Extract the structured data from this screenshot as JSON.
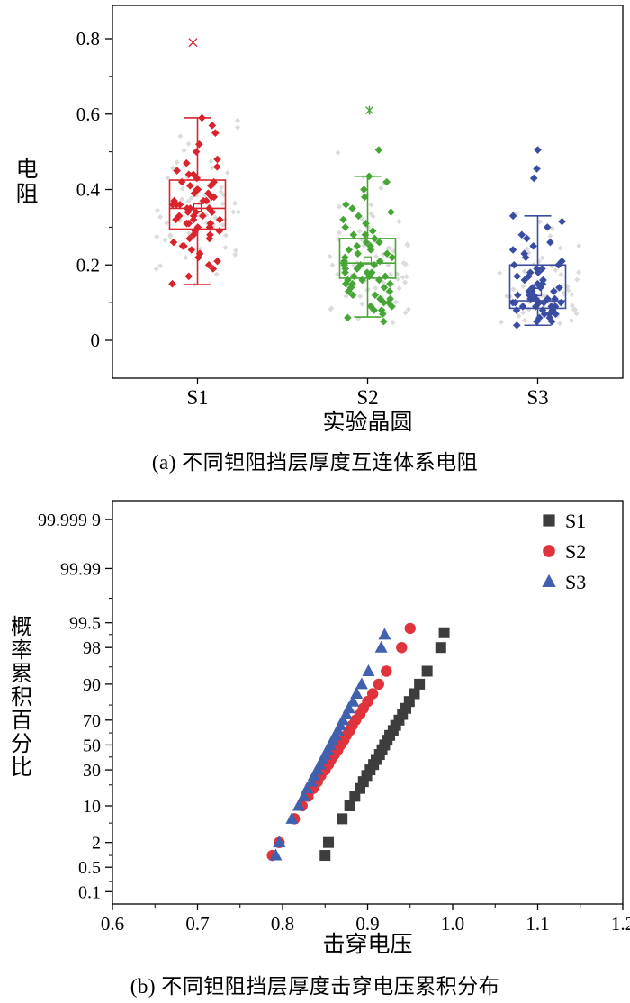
{
  "page": {
    "background": "#ffffff"
  },
  "chart_data": [
    {
      "type": "box",
      "caption": "(a) 不同钽阻挡层厚度互连体系电阻",
      "xlabel": "实验晶圆",
      "ylabel": "电阻",
      "categories": [
        "S1",
        "S2",
        "S3"
      ],
      "yticks": [
        0,
        0.2,
        0.4,
        0.6,
        0.8
      ],
      "yticks_minor": [
        0.1,
        0.3,
        0.5,
        0.7
      ],
      "ylim": [
        -0.1,
        0.88
      ],
      "series": [
        {
          "name": "S1",
          "color": "#d9232d",
          "box": {
            "low": 0.148,
            "q1": 0.295,
            "median": 0.35,
            "q3": 0.425,
            "high": 0.59,
            "mean": 0.352
          },
          "outliers": [
            0.79
          ],
          "outlier_marker": "x",
          "points": [
            0.15,
            0.17,
            0.19,
            0.2,
            0.21,
            0.22,
            0.23,
            0.24,
            0.25,
            0.25,
            0.26,
            0.27,
            0.27,
            0.28,
            0.28,
            0.29,
            0.29,
            0.3,
            0.3,
            0.3,
            0.31,
            0.31,
            0.31,
            0.32,
            0.32,
            0.32,
            0.33,
            0.33,
            0.33,
            0.34,
            0.34,
            0.34,
            0.35,
            0.35,
            0.35,
            0.36,
            0.36,
            0.36,
            0.37,
            0.37,
            0.37,
            0.38,
            0.38,
            0.39,
            0.39,
            0.4,
            0.4,
            0.41,
            0.41,
            0.42,
            0.42,
            0.43,
            0.44,
            0.44,
            0.45,
            0.46,
            0.47,
            0.48,
            0.5,
            0.52,
            0.55,
            0.57,
            0.59
          ]
        },
        {
          "name": "S2",
          "color": "#46a635",
          "box": {
            "low": 0.062,
            "q1": 0.165,
            "median": 0.205,
            "q3": 0.27,
            "high": 0.435,
            "mean": 0.212
          },
          "outliers": [
            0.61
          ],
          "outlier_marker": "star",
          "points": [
            0.05,
            0.06,
            0.07,
            0.08,
            0.08,
            0.09,
            0.09,
            0.1,
            0.1,
            0.11,
            0.11,
            0.12,
            0.12,
            0.13,
            0.13,
            0.14,
            0.14,
            0.15,
            0.15,
            0.15,
            0.16,
            0.16,
            0.16,
            0.17,
            0.17,
            0.17,
            0.18,
            0.18,
            0.18,
            0.19,
            0.19,
            0.2,
            0.2,
            0.2,
            0.21,
            0.21,
            0.22,
            0.22,
            0.23,
            0.23,
            0.24,
            0.24,
            0.25,
            0.25,
            0.26,
            0.26,
            0.27,
            0.28,
            0.28,
            0.29,
            0.3,
            0.31,
            0.32,
            0.33,
            0.34,
            0.35,
            0.36,
            0.38,
            0.4,
            0.42,
            0.435,
            0.505
          ]
        },
        {
          "name": "S3",
          "color": "#3a4da0",
          "box": {
            "low": 0.04,
            "q1": 0.085,
            "median": 0.105,
            "q3": 0.2,
            "high": 0.33,
            "mean": 0.128
          },
          "outliers": [
            0.43,
            0.455,
            0.505
          ],
          "outlier_marker": "diamond",
          "points": [
            0.04,
            0.05,
            0.05,
            0.06,
            0.06,
            0.07,
            0.07,
            0.07,
            0.08,
            0.08,
            0.08,
            0.09,
            0.09,
            0.09,
            0.09,
            0.1,
            0.1,
            0.1,
            0.1,
            0.1,
            0.11,
            0.11,
            0.11,
            0.11,
            0.12,
            0.12,
            0.12,
            0.13,
            0.13,
            0.13,
            0.14,
            0.14,
            0.14,
            0.15,
            0.15,
            0.16,
            0.16,
            0.17,
            0.17,
            0.18,
            0.18,
            0.19,
            0.19,
            0.2,
            0.2,
            0.21,
            0.22,
            0.23,
            0.24,
            0.25,
            0.26,
            0.27,
            0.28,
            0.3,
            0.315,
            0.33
          ]
        }
      ]
    },
    {
      "type": "scatter",
      "scale": "probit-y",
      "caption": "(b) 不同钽阻挡层厚度击穿电压累积分布",
      "xlabel": "击穿电压",
      "ylabel": "概率累积百分比",
      "xlim": [
        0.6,
        1.2
      ],
      "xticks": [
        0.6,
        0.7,
        0.8,
        0.9,
        1.0,
        1.1,
        1.2
      ],
      "xtick_labels": [
        "0.6",
        "0.7",
        "0.8",
        "0.9",
        "1.0",
        "1.1",
        "1.2"
      ],
      "yticks": [
        99.9999,
        99.99,
        99.5,
        98,
        90,
        70,
        50,
        30,
        10,
        2,
        0.5,
        0.1
      ],
      "ytick_labels": [
        "99.999 9",
        "99.99",
        "99.5",
        "98",
        "90",
        "70",
        "50",
        "30",
        "10",
        "2",
        "0.5",
        "0.1"
      ],
      "yticks_minor": [
        99.9,
        99,
        95,
        80,
        60,
        40,
        20,
        5,
        1,
        0.2
      ],
      "xticks_minor": [
        0.65,
        0.75,
        0.85,
        0.95,
        1.05,
        1.15
      ],
      "legend": [
        "S1",
        "S2",
        "S3"
      ],
      "series": [
        {
          "name": "S1",
          "marker": "square",
          "color": "#3d3d3d",
          "points": [
            [
              0.85,
              1.0
            ],
            [
              0.854,
              2
            ],
            [
              0.87,
              6
            ],
            [
              0.879,
              10
            ],
            [
              0.885,
              14
            ],
            [
              0.891,
              18
            ],
            [
              0.895,
              22
            ],
            [
              0.899,
              26
            ],
            [
              0.903,
              30
            ],
            [
              0.907,
              34
            ],
            [
              0.91,
              38
            ],
            [
              0.914,
              42
            ],
            [
              0.917,
              46
            ],
            [
              0.92,
              50
            ],
            [
              0.923,
              54
            ],
            [
              0.926,
              58
            ],
            [
              0.93,
              62
            ],
            [
              0.933,
              66
            ],
            [
              0.937,
              70
            ],
            [
              0.941,
              74
            ],
            [
              0.945,
              78
            ],
            [
              0.949,
              82
            ],
            [
              0.955,
              86
            ],
            [
              0.961,
              90
            ],
            [
              0.97,
              94
            ],
            [
              0.986,
              98
            ],
            [
              0.99,
              99.1
            ]
          ]
        },
        {
          "name": "S2",
          "marker": "circle",
          "color": "#e0333c",
          "points": [
            [
              0.788,
              1.0
            ],
            [
              0.796,
              2
            ],
            [
              0.814,
              6
            ],
            [
              0.823,
              10
            ],
            [
              0.83,
              14
            ],
            [
              0.836,
              18
            ],
            [
              0.841,
              22
            ],
            [
              0.845,
              26
            ],
            [
              0.85,
              30
            ],
            [
              0.854,
              34
            ],
            [
              0.857,
              38
            ],
            [
              0.861,
              42
            ],
            [
              0.865,
              46
            ],
            [
              0.868,
              50
            ],
            [
              0.872,
              54
            ],
            [
              0.875,
              58
            ],
            [
              0.879,
              62
            ],
            [
              0.882,
              66
            ],
            [
              0.886,
              70
            ],
            [
              0.891,
              74
            ],
            [
              0.895,
              78
            ],
            [
              0.9,
              82
            ],
            [
              0.906,
              86
            ],
            [
              0.913,
              90
            ],
            [
              0.922,
              94
            ],
            [
              0.94,
              98
            ],
            [
              0.95,
              99.3
            ]
          ]
        },
        {
          "name": "S3",
          "marker": "triangle",
          "color": "#4161ae",
          "points": [
            [
              0.792,
              1.0
            ],
            [
              0.796,
              2
            ],
            [
              0.811,
              6
            ],
            [
              0.819,
              10
            ],
            [
              0.825,
              14
            ],
            [
              0.829,
              18
            ],
            [
              0.834,
              22
            ],
            [
              0.837,
              26
            ],
            [
              0.841,
              30
            ],
            [
              0.844,
              34
            ],
            [
              0.847,
              38
            ],
            [
              0.85,
              42
            ],
            [
              0.853,
              46
            ],
            [
              0.856,
              50
            ],
            [
              0.859,
              54
            ],
            [
              0.862,
              58
            ],
            [
              0.865,
              62
            ],
            [
              0.868,
              66
            ],
            [
              0.871,
              70
            ],
            [
              0.875,
              74
            ],
            [
              0.878,
              78
            ],
            [
              0.883,
              82
            ],
            [
              0.887,
              86
            ],
            [
              0.893,
              90
            ],
            [
              0.901,
              94
            ],
            [
              0.916,
              98
            ],
            [
              0.92,
              99.0
            ]
          ]
        }
      ]
    }
  ]
}
